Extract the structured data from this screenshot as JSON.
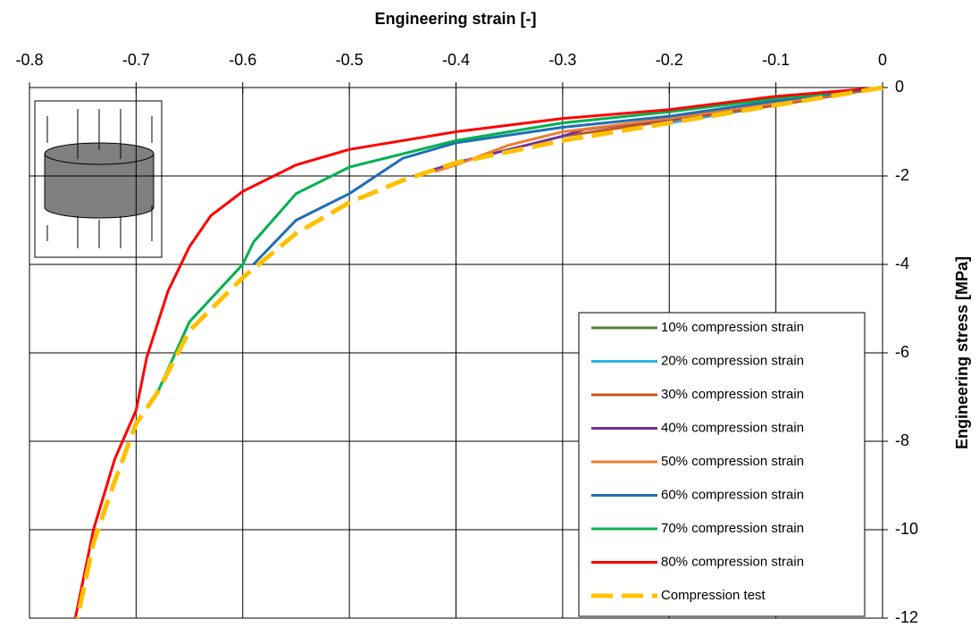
{
  "chart_data": {
    "type": "line",
    "x_label": "Engineering strain [-]",
    "y_label": "Engineering stress [MPa]",
    "xlim": [
      -0.8,
      0
    ],
    "xticks": [
      -0.8,
      -0.7,
      -0.6,
      -0.5,
      -0.4,
      -0.3,
      -0.2,
      -0.1,
      0
    ],
    "ylim": [
      -12,
      0
    ],
    "yticks": [
      0,
      -2,
      -4,
      -6,
      -8,
      -10,
      -12
    ],
    "grid": true,
    "legend": "lower right",
    "series": [
      {
        "name": "10% compression strain",
        "color": "#548235",
        "x": [
          0,
          -0.05,
          -0.1
        ],
        "values": [
          0,
          -0.2,
          -0.4
        ]
      },
      {
        "name": "20% compression strain",
        "color": "#2eb0e8",
        "x": [
          0,
          -0.1,
          -0.2
        ],
        "values": [
          0,
          -0.4,
          -0.8
        ]
      },
      {
        "name": "30% compression strain",
        "color": "#c55a11",
        "x": [
          0,
          -0.1,
          -0.2,
          -0.3
        ],
        "values": [
          0,
          -0.4,
          -0.75,
          -1.1
        ]
      },
      {
        "name": "40% compression strain",
        "color": "#7030a0",
        "x": [
          0,
          -0.1,
          -0.2,
          -0.28,
          -0.3,
          -0.35,
          -0.4,
          -0.44
        ],
        "values": [
          0,
          -0.35,
          -0.72,
          -0.95,
          -1.1,
          -1.4,
          -1.7,
          -2.0
        ]
      },
      {
        "name": "50% compression strain",
        "color": "#ed7d31",
        "x": [
          0,
          -0.1,
          -0.2,
          -0.3,
          -0.35,
          -0.4,
          -0.42
        ],
        "values": [
          0,
          -0.35,
          -0.7,
          -1.0,
          -1.3,
          -1.75,
          -1.9
        ]
      },
      {
        "name": "60% compression strain",
        "color": "#1f6fb5",
        "x": [
          0,
          -0.1,
          -0.2,
          -0.3,
          -0.4,
          -0.45,
          -0.5,
          -0.55,
          -0.59
        ],
        "values": [
          0,
          -0.3,
          -0.65,
          -0.9,
          -1.25,
          -1.6,
          -2.4,
          -3.0,
          -4.0
        ]
      },
      {
        "name": "70% compression strain",
        "color": "#00b050",
        "x": [
          0,
          -0.1,
          -0.2,
          -0.3,
          -0.4,
          -0.5,
          -0.55,
          -0.59,
          -0.6,
          -0.65,
          -0.68
        ],
        "values": [
          0,
          -0.25,
          -0.55,
          -0.8,
          -1.2,
          -1.8,
          -2.4,
          -3.5,
          -4.0,
          -5.3,
          -6.9
        ]
      },
      {
        "name": "80% compression strain",
        "color": "#ff0000",
        "x": [
          0,
          -0.1,
          -0.2,
          -0.3,
          -0.4,
          -0.5,
          -0.55,
          -0.6,
          -0.63,
          -0.65,
          -0.67,
          -0.69,
          -0.7,
          -0.72,
          -0.74,
          -0.757
        ],
        "values": [
          0,
          -0.2,
          -0.5,
          -0.7,
          -1.0,
          -1.4,
          -1.75,
          -2.35,
          -2.9,
          -3.6,
          -4.6,
          -6.1,
          -7.3,
          -8.4,
          -10,
          -12
        ]
      },
      {
        "name": "Compression test",
        "color": "#ffc000",
        "dash": true,
        "x": [
          0,
          -0.1,
          -0.2,
          -0.3,
          -0.4,
          -0.45,
          -0.5,
          -0.55,
          -0.6,
          -0.65,
          -0.68,
          -0.7,
          -0.72,
          -0.74,
          -0.755
        ],
        "values": [
          0,
          -0.4,
          -0.8,
          -1.2,
          -1.7,
          -2.1,
          -2.6,
          -3.3,
          -4.3,
          -5.5,
          -6.9,
          -7.6,
          -8.9,
          -10.3,
          -12
        ]
      }
    ]
  }
}
